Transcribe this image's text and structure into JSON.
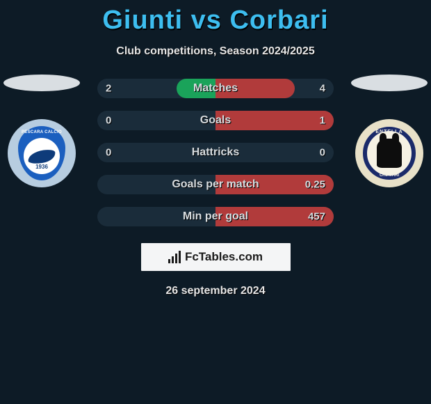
{
  "header": {
    "title": "Giunti vs Corbari",
    "subtitle": "Club competitions, Season 2024/2025",
    "title_color": "#3dbef0"
  },
  "players": {
    "left": {
      "name": "Giunti"
    },
    "right": {
      "name": "Corbari"
    }
  },
  "clubs": {
    "left": {
      "circle_bg": "#b7cde0",
      "crest_primary": "#1b5fbf",
      "banner_text": "PESCARA CALCIO",
      "year": "1936"
    },
    "right": {
      "circle_bg": "#e8e1c8",
      "ring_color": "#1a2a6a",
      "ring_top_text": "ENTELLA",
      "ring_bottom_text": "CHIAVARI"
    }
  },
  "stats": [
    {
      "label": "Matches",
      "left_val": "2",
      "right_val": "4",
      "left_pct": 33,
      "right_pct": 67
    },
    {
      "label": "Goals",
      "left_val": "0",
      "right_val": "1",
      "left_pct": 0,
      "right_pct": 100
    },
    {
      "label": "Hattricks",
      "left_val": "0",
      "right_val": "0",
      "left_pct": 0,
      "right_pct": 0
    },
    {
      "label": "Goals per match",
      "left_val": "",
      "right_val": "0.25",
      "left_pct": 0,
      "right_pct": 100
    },
    {
      "label": "Min per goal",
      "left_val": "",
      "right_val": "457",
      "left_pct": 0,
      "right_pct": 100
    }
  ],
  "stat_colors": {
    "bar_bg": "#1a2c3a",
    "left_fill": "#1aa35a",
    "right_fill": "#b13b3b",
    "text": "#d8dde0"
  },
  "brand": {
    "text": "FcTables.com"
  },
  "footer": {
    "date": "26 september 2024"
  },
  "page_bg": "#0d1b26"
}
